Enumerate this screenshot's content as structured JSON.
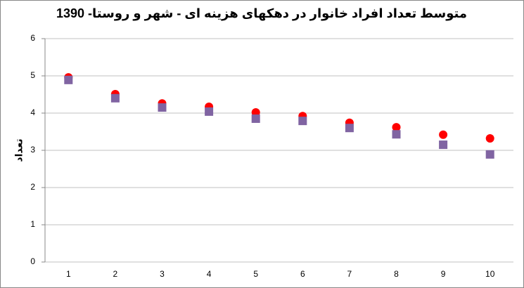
{
  "chart_data": {
    "type": "scatter",
    "title": "متوسط تعداد افراد خانوار در دهکهای هزینه ای - شهر و روستا- 1390",
    "y_label": "تعداد",
    "categories": [
      "1",
      "2",
      "3",
      "4",
      "5",
      "6",
      "7",
      "8",
      "9",
      "10"
    ],
    "series": [
      {
        "color": "#ff0000",
        "marker": "circle",
        "values": [
          4.96,
          4.51,
          4.26,
          4.17,
          4.02,
          3.92,
          3.74,
          3.62,
          3.42,
          3.32
        ]
      },
      {
        "color": "#8064a2",
        "marker": "square",
        "values": [
          4.89,
          4.4,
          4.15,
          4.04,
          3.85,
          3.79,
          3.6,
          3.43,
          3.15,
          2.89
        ]
      }
    ],
    "ylim": [
      0,
      6
    ],
    "yticks": [
      0,
      1,
      2,
      3,
      4,
      5,
      6
    ],
    "grid": true
  }
}
